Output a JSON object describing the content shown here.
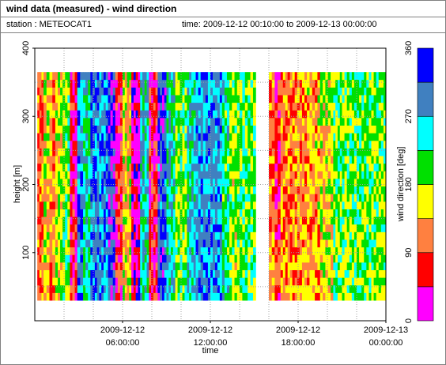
{
  "header": {
    "title": "wind data (measured) - wind direction",
    "station": "station : METEOCAT1",
    "time_range": "time: 2009-12-12 00:10:00 to 2009-12-13 00:00:00"
  },
  "chart_data": {
    "type": "heatmap",
    "xlabel": "time",
    "ylabel": "height [m]",
    "x_ticks": [
      {
        "hour": 6,
        "line1": "2009-12-12",
        "line2": "06:00:00"
      },
      {
        "hour": 12,
        "line1": "2009-12-12",
        "line2": "12:00:00"
      },
      {
        "hour": 18,
        "line1": "2009-12-12",
        "line2": "18:00:00"
      },
      {
        "hour": 24,
        "line1": "2009-12-13",
        "line2": "00:00:00"
      }
    ],
    "x_range_hours": [
      0.167,
      24
    ],
    "y_ticks": [
      100,
      200,
      300,
      400
    ],
    "ylim": [
      0,
      400
    ],
    "height_range": [
      30,
      365
    ],
    "grid": true,
    "colorbar": {
      "label": "wind direction [deg]",
      "ticks": [
        0,
        90,
        180,
        270,
        360
      ],
      "range": [
        0,
        360
      ],
      "bins": [
        {
          "from": 0,
          "to": 45,
          "color": "#ff00ff"
        },
        {
          "from": 45,
          "to": 90,
          "color": "#ff0000"
        },
        {
          "from": 90,
          "to": 135,
          "color": "#ff8040"
        },
        {
          "from": 135,
          "to": 180,
          "color": "#ffff00"
        },
        {
          "from": 180,
          "to": 225,
          "color": "#00e000"
        },
        {
          "from": 225,
          "to": 270,
          "color": "#00ffff"
        },
        {
          "from": 270,
          "to": 315,
          "color": "#4080c0"
        },
        {
          "from": 315,
          "to": 360,
          "color": "#0000ff"
        }
      ]
    },
    "data_gap_hours": [
      15.1,
      16.0
    ],
    "column_profile": [
      {
        "from": 0.17,
        "to": 0.6,
        "dir": 100
      },
      {
        "from": 0.6,
        "to": 1.0,
        "dir": 160
      },
      {
        "from": 1.0,
        "to": 1.4,
        "dir": 110
      },
      {
        "from": 1.4,
        "to": 1.9,
        "dir": 170
      },
      {
        "from": 1.9,
        "to": 2.4,
        "dir": 200
      },
      {
        "from": 2.4,
        "to": 2.9,
        "dir": 60
      },
      {
        "from": 2.9,
        "to": 3.3,
        "dir": 290
      },
      {
        "from": 3.3,
        "to": 3.8,
        "dir": 240
      },
      {
        "from": 3.8,
        "to": 4.4,
        "dir": 300
      },
      {
        "from": 4.4,
        "to": 5.0,
        "dir": 280
      },
      {
        "from": 5.0,
        "to": 5.5,
        "dir": 330
      },
      {
        "from": 5.5,
        "to": 6.0,
        "dir": 70
      },
      {
        "from": 6.0,
        "to": 6.6,
        "dir": 150
      },
      {
        "from": 6.6,
        "to": 7.2,
        "dir": 30
      },
      {
        "from": 7.2,
        "to": 7.8,
        "dir": 260
      },
      {
        "from": 7.8,
        "to": 8.4,
        "dir": 60
      },
      {
        "from": 8.4,
        "to": 9.0,
        "dir": 320
      },
      {
        "from": 9.0,
        "to": 9.6,
        "dir": 250
      },
      {
        "from": 9.6,
        "to": 10.4,
        "dir": 190
      },
      {
        "from": 10.4,
        "to": 11.0,
        "dir": 250
      },
      {
        "from": 11.0,
        "to": 12.0,
        "dir": 285
      },
      {
        "from": 12.0,
        "to": 12.8,
        "dir": 280
      },
      {
        "from": 12.8,
        "to": 13.3,
        "dir": 230
      },
      {
        "from": 13.3,
        "to": 14.0,
        "dir": 185
      },
      {
        "from": 14.0,
        "to": 15.1,
        "dir": 200
      },
      {
        "from": 16.0,
        "to": 16.4,
        "dir": 120
      },
      {
        "from": 16.4,
        "to": 16.8,
        "dir": 70
      },
      {
        "from": 16.8,
        "to": 17.6,
        "dir": 110
      },
      {
        "from": 17.6,
        "to": 18.6,
        "dir": 120
      },
      {
        "from": 18.6,
        "to": 19.5,
        "dir": 130
      },
      {
        "from": 19.5,
        "to": 20.4,
        "dir": 155
      },
      {
        "from": 20.4,
        "to": 21.0,
        "dir": 200
      },
      {
        "from": 21.0,
        "to": 22.0,
        "dir": 195
      },
      {
        "from": 22.0,
        "to": 23.0,
        "dir": 205
      },
      {
        "from": 23.0,
        "to": 24.0,
        "dir": 190
      }
    ]
  }
}
